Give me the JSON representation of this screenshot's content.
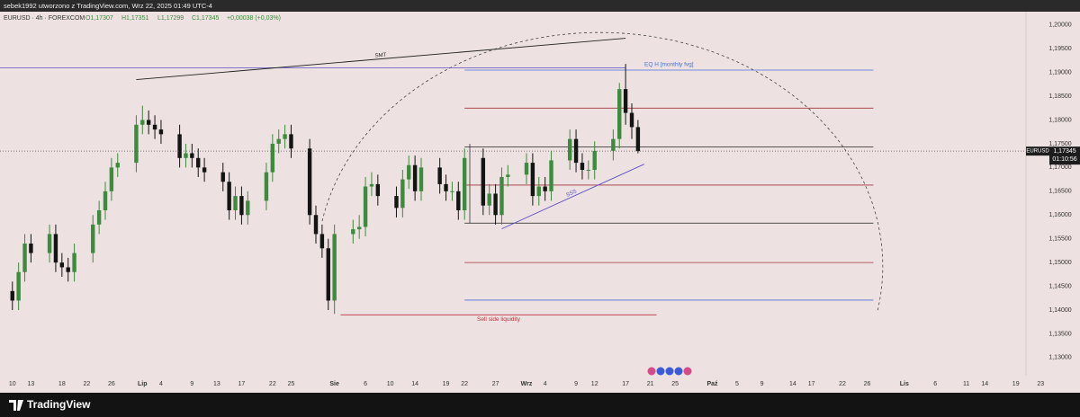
{
  "header": {
    "author": "sebek1992 utworzono z TradingView.com, Wrz 22, 2025 01:49 UTC-4",
    "symbol": "EURUSD · 4h · FOREXCOM",
    "open": "O1,17307",
    "high": "H1,17351",
    "low": "L1,17299",
    "close": "C1,17345",
    "change": "+0,00038 (+0,03%)"
  },
  "chart_data": {
    "type": "candlestick",
    "x": [
      "2025-06-10",
      "2025-06-11",
      "2025-06-12",
      "2025-06-13",
      "2025-06-16",
      "2025-06-17",
      "2025-06-18",
      "2025-06-19",
      "2025-06-20",
      "2025-06-23",
      "2025-06-24",
      "2025-06-25",
      "2025-06-26",
      "2025-06-27",
      "2025-06-30",
      "2025-07-01",
      "2025-07-02",
      "2025-07-03",
      "2025-07-04",
      "2025-07-07",
      "2025-07-08",
      "2025-07-09",
      "2025-07-10",
      "2025-07-11",
      "2025-07-14",
      "2025-07-15",
      "2025-07-16",
      "2025-07-17",
      "2025-07-18",
      "2025-07-21",
      "2025-07-22",
      "2025-07-23",
      "2025-07-24",
      "2025-07-25",
      "2025-07-28",
      "2025-07-29",
      "2025-07-30",
      "2025-07-31",
      "2025-08-01",
      "2025-08-04",
      "2025-08-05",
      "2025-08-06",
      "2025-08-07",
      "2025-08-08",
      "2025-08-11",
      "2025-08-12",
      "2025-08-13",
      "2025-08-14",
      "2025-08-15",
      "2025-08-18",
      "2025-08-19",
      "2025-08-20",
      "2025-08-21",
      "2025-08-22",
      "2025-08-25",
      "2025-08-26",
      "2025-08-27",
      "2025-08-28",
      "2025-08-29",
      "2025-09-01",
      "2025-09-02",
      "2025-09-03",
      "2025-09-04",
      "2025-09-05",
      "2025-09-08",
      "2025-09-09",
      "2025-09-10",
      "2025-09-11",
      "2025-09-12",
      "2025-09-15",
      "2025-09-16",
      "2025-09-17",
      "2025-09-18",
      "2025-09-19"
    ],
    "open": [
      1.144,
      1.142,
      1.148,
      1.154,
      1.152,
      1.156,
      1.15,
      1.149,
      1.148,
      1.152,
      1.158,
      1.161,
      1.165,
      1.17,
      1.171,
      1.179,
      1.18,
      1.179,
      1.178,
      1.177,
      1.172,
      1.173,
      1.172,
      1.17,
      1.169,
      1.167,
      1.161,
      1.164,
      1.16,
      1.163,
      1.169,
      1.175,
      1.176,
      1.177,
      1.174,
      1.16,
      1.156,
      1.153,
      1.142,
      1.156,
      1.157,
      1.1575,
      1.166,
      1.1665,
      1.164,
      1.1615,
      1.1675,
      1.1705,
      1.165,
      1.17,
      1.1665,
      1.165,
      1.165,
      1.161,
      1.172,
      1.162,
      1.1645,
      1.16,
      1.168,
      1.1685,
      1.171,
      1.164,
      1.166,
      1.165,
      1.1715,
      1.176,
      1.171,
      1.1695,
      1.1695,
      1.1735,
      1.176,
      1.1865,
      1.1815,
      1.1785
    ],
    "high": [
      1.146,
      1.15,
      1.156,
      1.156,
      1.158,
      1.158,
      1.152,
      1.151,
      1.154,
      1.16,
      1.163,
      1.167,
      1.172,
      1.173,
      1.181,
      1.183,
      1.182,
      1.181,
      1.18,
      1.179,
      1.175,
      1.175,
      1.174,
      1.172,
      1.171,
      1.169,
      1.166,
      1.166,
      1.165,
      1.171,
      1.177,
      1.178,
      1.179,
      1.179,
      1.176,
      1.162,
      1.158,
      1.155,
      1.158,
      1.159,
      1.16,
      1.168,
      1.169,
      1.1685,
      1.166,
      1.1695,
      1.1725,
      1.1725,
      1.172,
      1.172,
      1.1685,
      1.167,
      1.167,
      1.174,
      1.174,
      1.1665,
      1.1665,
      1.17,
      1.1705,
      1.173,
      1.173,
      1.168,
      1.168,
      1.1735,
      1.178,
      1.178,
      1.173,
      1.1715,
      1.1755,
      1.178,
      1.1878,
      1.1918,
      1.1835,
      1.18
    ],
    "low": [
      1.14,
      1.14,
      1.146,
      1.15,
      1.15,
      1.148,
      1.147,
      1.146,
      1.146,
      1.15,
      1.156,
      1.159,
      1.163,
      1.168,
      1.169,
      1.177,
      1.177,
      1.176,
      1.175,
      1.17,
      1.17,
      1.17,
      1.168,
      1.167,
      1.165,
      1.159,
      1.159,
      1.158,
      1.158,
      1.161,
      1.167,
      1.173,
      1.174,
      1.172,
      1.158,
      1.154,
      1.151,
      1.14,
      1.1392,
      1.154,
      1.155,
      1.1555,
      1.164,
      1.162,
      1.1595,
      1.1595,
      1.1655,
      1.163,
      1.163,
      1.1645,
      1.163,
      1.163,
      1.159,
      1.159,
      1.16,
      1.16,
      1.158,
      1.158,
      1.166,
      1.1665,
      1.162,
      1.162,
      1.163,
      1.163,
      1.1695,
      1.169,
      1.1675,
      1.1675,
      1.1675,
      1.1715,
      1.174,
      1.179,
      1.176,
      1.17299
    ],
    "close": [
      1.142,
      1.148,
      1.154,
      1.152,
      1.156,
      1.15,
      1.149,
      1.148,
      1.152,
      1.158,
      1.161,
      1.165,
      1.17,
      1.171,
      1.179,
      1.18,
      1.179,
      1.178,
      1.177,
      1.172,
      1.173,
      1.172,
      1.17,
      1.169,
      1.167,
      1.161,
      1.164,
      1.16,
      1.163,
      1.169,
      1.175,
      1.176,
      1.177,
      1.174,
      1.16,
      1.156,
      1.153,
      1.142,
      1.156,
      1.157,
      1.1575,
      1.166,
      1.1665,
      1.164,
      1.1615,
      1.1675,
      1.1705,
      1.165,
      1.17,
      1.1665,
      1.165,
      1.165,
      1.161,
      1.172,
      1.162,
      1.1645,
      1.16,
      1.168,
      1.1685,
      1.171,
      1.164,
      1.166,
      1.165,
      1.1715,
      1.176,
      1.171,
      1.1695,
      1.1695,
      1.1735,
      1.176,
      1.1865,
      1.1815,
      1.1785,
      1.17345
    ],
    "up_color": "#3d8b3d",
    "down_color": "#141414",
    "xlim": [
      "2025-06-08",
      "2025-11-25"
    ],
    "xticks": [
      {
        "value": "2025-06-10",
        "label": "10"
      },
      {
        "value": "2025-06-13",
        "label": "13"
      },
      {
        "value": "2025-06-18",
        "label": "18"
      },
      {
        "value": "2025-06-22",
        "label": "22"
      },
      {
        "value": "2025-06-26",
        "label": "26"
      },
      {
        "value": "2025-07-01",
        "label": "Lip"
      },
      {
        "value": "2025-07-04",
        "label": "4"
      },
      {
        "value": "2025-07-09",
        "label": "9"
      },
      {
        "value": "2025-07-13",
        "label": "13"
      },
      {
        "value": "2025-07-17",
        "label": "17"
      },
      {
        "value": "2025-07-22",
        "label": "22"
      },
      {
        "value": "2025-07-25",
        "label": "25"
      },
      {
        "value": "2025-08-01",
        "label": "Sie"
      },
      {
        "value": "2025-08-06",
        "label": "6"
      },
      {
        "value": "2025-08-10",
        "label": "10"
      },
      {
        "value": "2025-08-14",
        "label": "14"
      },
      {
        "value": "2025-08-19",
        "label": "19"
      },
      {
        "value": "2025-08-22",
        "label": "22"
      },
      {
        "value": "2025-08-27",
        "label": "27"
      },
      {
        "value": "2025-09-01",
        "label": "Wrz"
      },
      {
        "value": "2025-09-04",
        "label": "4"
      },
      {
        "value": "2025-09-09",
        "label": "9"
      },
      {
        "value": "2025-09-12",
        "label": "12"
      },
      {
        "value": "2025-09-17",
        "label": "17"
      },
      {
        "value": "2025-09-21",
        "label": "21"
      },
      {
        "value": "2025-09-25",
        "label": "25"
      },
      {
        "value": "2025-10-01",
        "label": "Paź"
      },
      {
        "value": "2025-10-05",
        "label": "5"
      },
      {
        "value": "2025-10-09",
        "label": "9"
      },
      {
        "value": "2025-10-14",
        "label": "14"
      },
      {
        "value": "2025-10-17",
        "label": "17"
      },
      {
        "value": "2025-10-22",
        "label": "22"
      },
      {
        "value": "2025-10-26",
        "label": "26"
      },
      {
        "value": "2025-11-01",
        "label": "Lis"
      },
      {
        "value": "2025-11-06",
        "label": "6"
      },
      {
        "value": "2025-11-11",
        "label": "11"
      },
      {
        "value": "2025-11-14",
        "label": "14"
      },
      {
        "value": "2025-11-19",
        "label": "19"
      },
      {
        "value": "2025-11-23",
        "label": "23"
      }
    ],
    "ylim": [
      1.1262,
      1.2026
    ],
    "yticks": [
      {
        "value": 1.2,
        "label": "1,20000"
      },
      {
        "value": 1.195,
        "label": "1,19500"
      },
      {
        "value": 1.19,
        "label": "1,19000"
      },
      {
        "value": 1.185,
        "label": "1,18500"
      },
      {
        "value": 1.18,
        "label": "1,18000"
      },
      {
        "value": 1.175,
        "label": "1,17500"
      },
      {
        "value": 1.17,
        "label": "1,17000"
      },
      {
        "value": 1.165,
        "label": "1,16500"
      },
      {
        "value": 1.16,
        "label": "1,16000"
      },
      {
        "value": 1.155,
        "label": "1,15500"
      },
      {
        "value": 1.15,
        "label": "1,15000"
      },
      {
        "value": 1.145,
        "label": "1,14500"
      },
      {
        "value": 1.14,
        "label": "1,14000"
      },
      {
        "value": 1.135,
        "label": "1,13500"
      },
      {
        "value": 1.13,
        "label": "1,13000"
      }
    ],
    "price_tag": {
      "symbol": "EURUSD",
      "value": 1.17345,
      "label": "1,17345",
      "countdown": "01:10:56"
    },
    "levels": [
      {
        "price": 1.191,
        "color": "#5b4fc4",
        "from": "2025-06-08",
        "to": "2025-09-17"
      },
      {
        "price": 1.1905,
        "color": "#4a6fd8",
        "from": "2025-08-22",
        "to": "2025-10-27",
        "label": "EQ H [monthly fvg]"
      },
      {
        "price": 1.1825,
        "color": "#a0353d",
        "from": "2025-08-22",
        "to": "2025-10-27"
      },
      {
        "price": 1.1743,
        "color": "#222222",
        "from": "2025-08-22",
        "to": "2025-10-27"
      },
      {
        "price": 1.1663,
        "color": "#a0353d",
        "from": "2025-08-22",
        "to": "2025-10-27"
      },
      {
        "price": 1.1583,
        "color": "#222222",
        "from": "2025-08-22",
        "to": "2025-10-27"
      },
      {
        "price": 1.15,
        "color": "#a0353d",
        "from": "2025-08-22",
        "to": "2025-10-27"
      },
      {
        "price": 1.1421,
        "color": "#4a6fd8",
        "from": "2025-08-22",
        "to": "2025-10-27"
      },
      {
        "price": 1.139,
        "color": "#b8323c",
        "from": "2025-08-02",
        "to": "2025-09-22",
        "label": "Sell side liquidity"
      }
    ],
    "trendlines": [
      {
        "label": "SMT",
        "color": "#222222",
        "from": {
          "date": "2025-06-30",
          "price": 1.1885
        },
        "to": {
          "date": "2025-09-17",
          "price": 1.1972
        }
      },
      {
        "label": "SSS",
        "color": "#5b4fc4",
        "from": {
          "date": "2025-08-28",
          "price": 1.1571
        },
        "to": {
          "date": "2025-09-20",
          "price": 1.1707
        }
      }
    ]
  },
  "footer": {
    "brand": "TradingView"
  }
}
